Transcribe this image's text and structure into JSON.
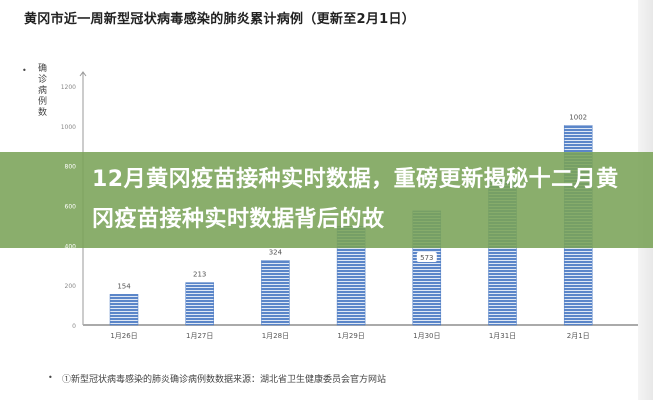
{
  "chart_data": {
    "type": "bar",
    "title": "黄冈市近一周新型冠状病毒感染的肺炎累计病例（更新至2月1日）",
    "ylabel": "确诊病例数",
    "xlabel": "",
    "categories": [
      "1月26日",
      "1月27日",
      "1月28日",
      "1月29日",
      "1月30日",
      "1月31日",
      "2月1日"
    ],
    "values": [
      154,
      213,
      324,
      496,
      573,
      726,
      1002
    ],
    "data_labels": [
      "154",
      "213",
      "324",
      "",
      "573",
      "",
      "1002"
    ],
    "yticks": [
      "0",
      "200",
      "400",
      "600",
      "800",
      "1000",
      "1200"
    ],
    "ylim": [
      0,
      1200
    ],
    "grid": false,
    "legend": "none",
    "bar_color": "#4f7cc4"
  },
  "banner": {
    "text": "12月黄冈疫苗接种实时数据，重磅更新揭秘十二月黄冈疫苗接种实时数据背后的故",
    "color": "#7aa358"
  },
  "footnote": "①新型冠状病毒感染的肺炎确诊病例数数据来源：湖北省卫生健康委员会官方网站"
}
